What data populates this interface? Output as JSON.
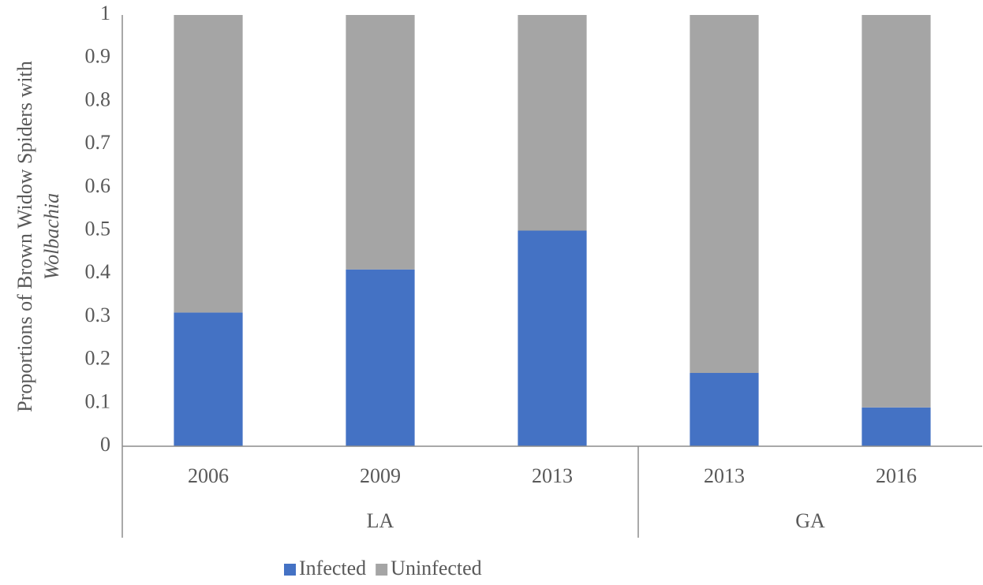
{
  "chart_data": {
    "type": "stacked_bar",
    "ylabel": [
      "Proportions of Brown Widow Spiders with",
      "Wolbachia"
    ],
    "groups": [
      {
        "label": "LA",
        "categories": [
          "2006",
          "2009",
          "2013"
        ]
      },
      {
        "label": "GA",
        "categories": [
          "2013",
          "2016"
        ]
      }
    ],
    "series": [
      {
        "name": "Infected",
        "color": "#4472c4",
        "values": [
          0.31,
          0.41,
          0.5,
          0.17,
          0.09
        ]
      },
      {
        "name": "Uninfected",
        "color": "#a5a5a5",
        "values": [
          0.69,
          0.59,
          0.5,
          0.83,
          0.91
        ]
      }
    ],
    "ylim": [
      0,
      1
    ],
    "yticks": [
      0,
      0.1,
      0.2,
      0.3,
      0.4,
      0.5,
      0.6,
      0.7,
      0.8,
      0.9,
      1
    ],
    "legend": "bottom"
  }
}
